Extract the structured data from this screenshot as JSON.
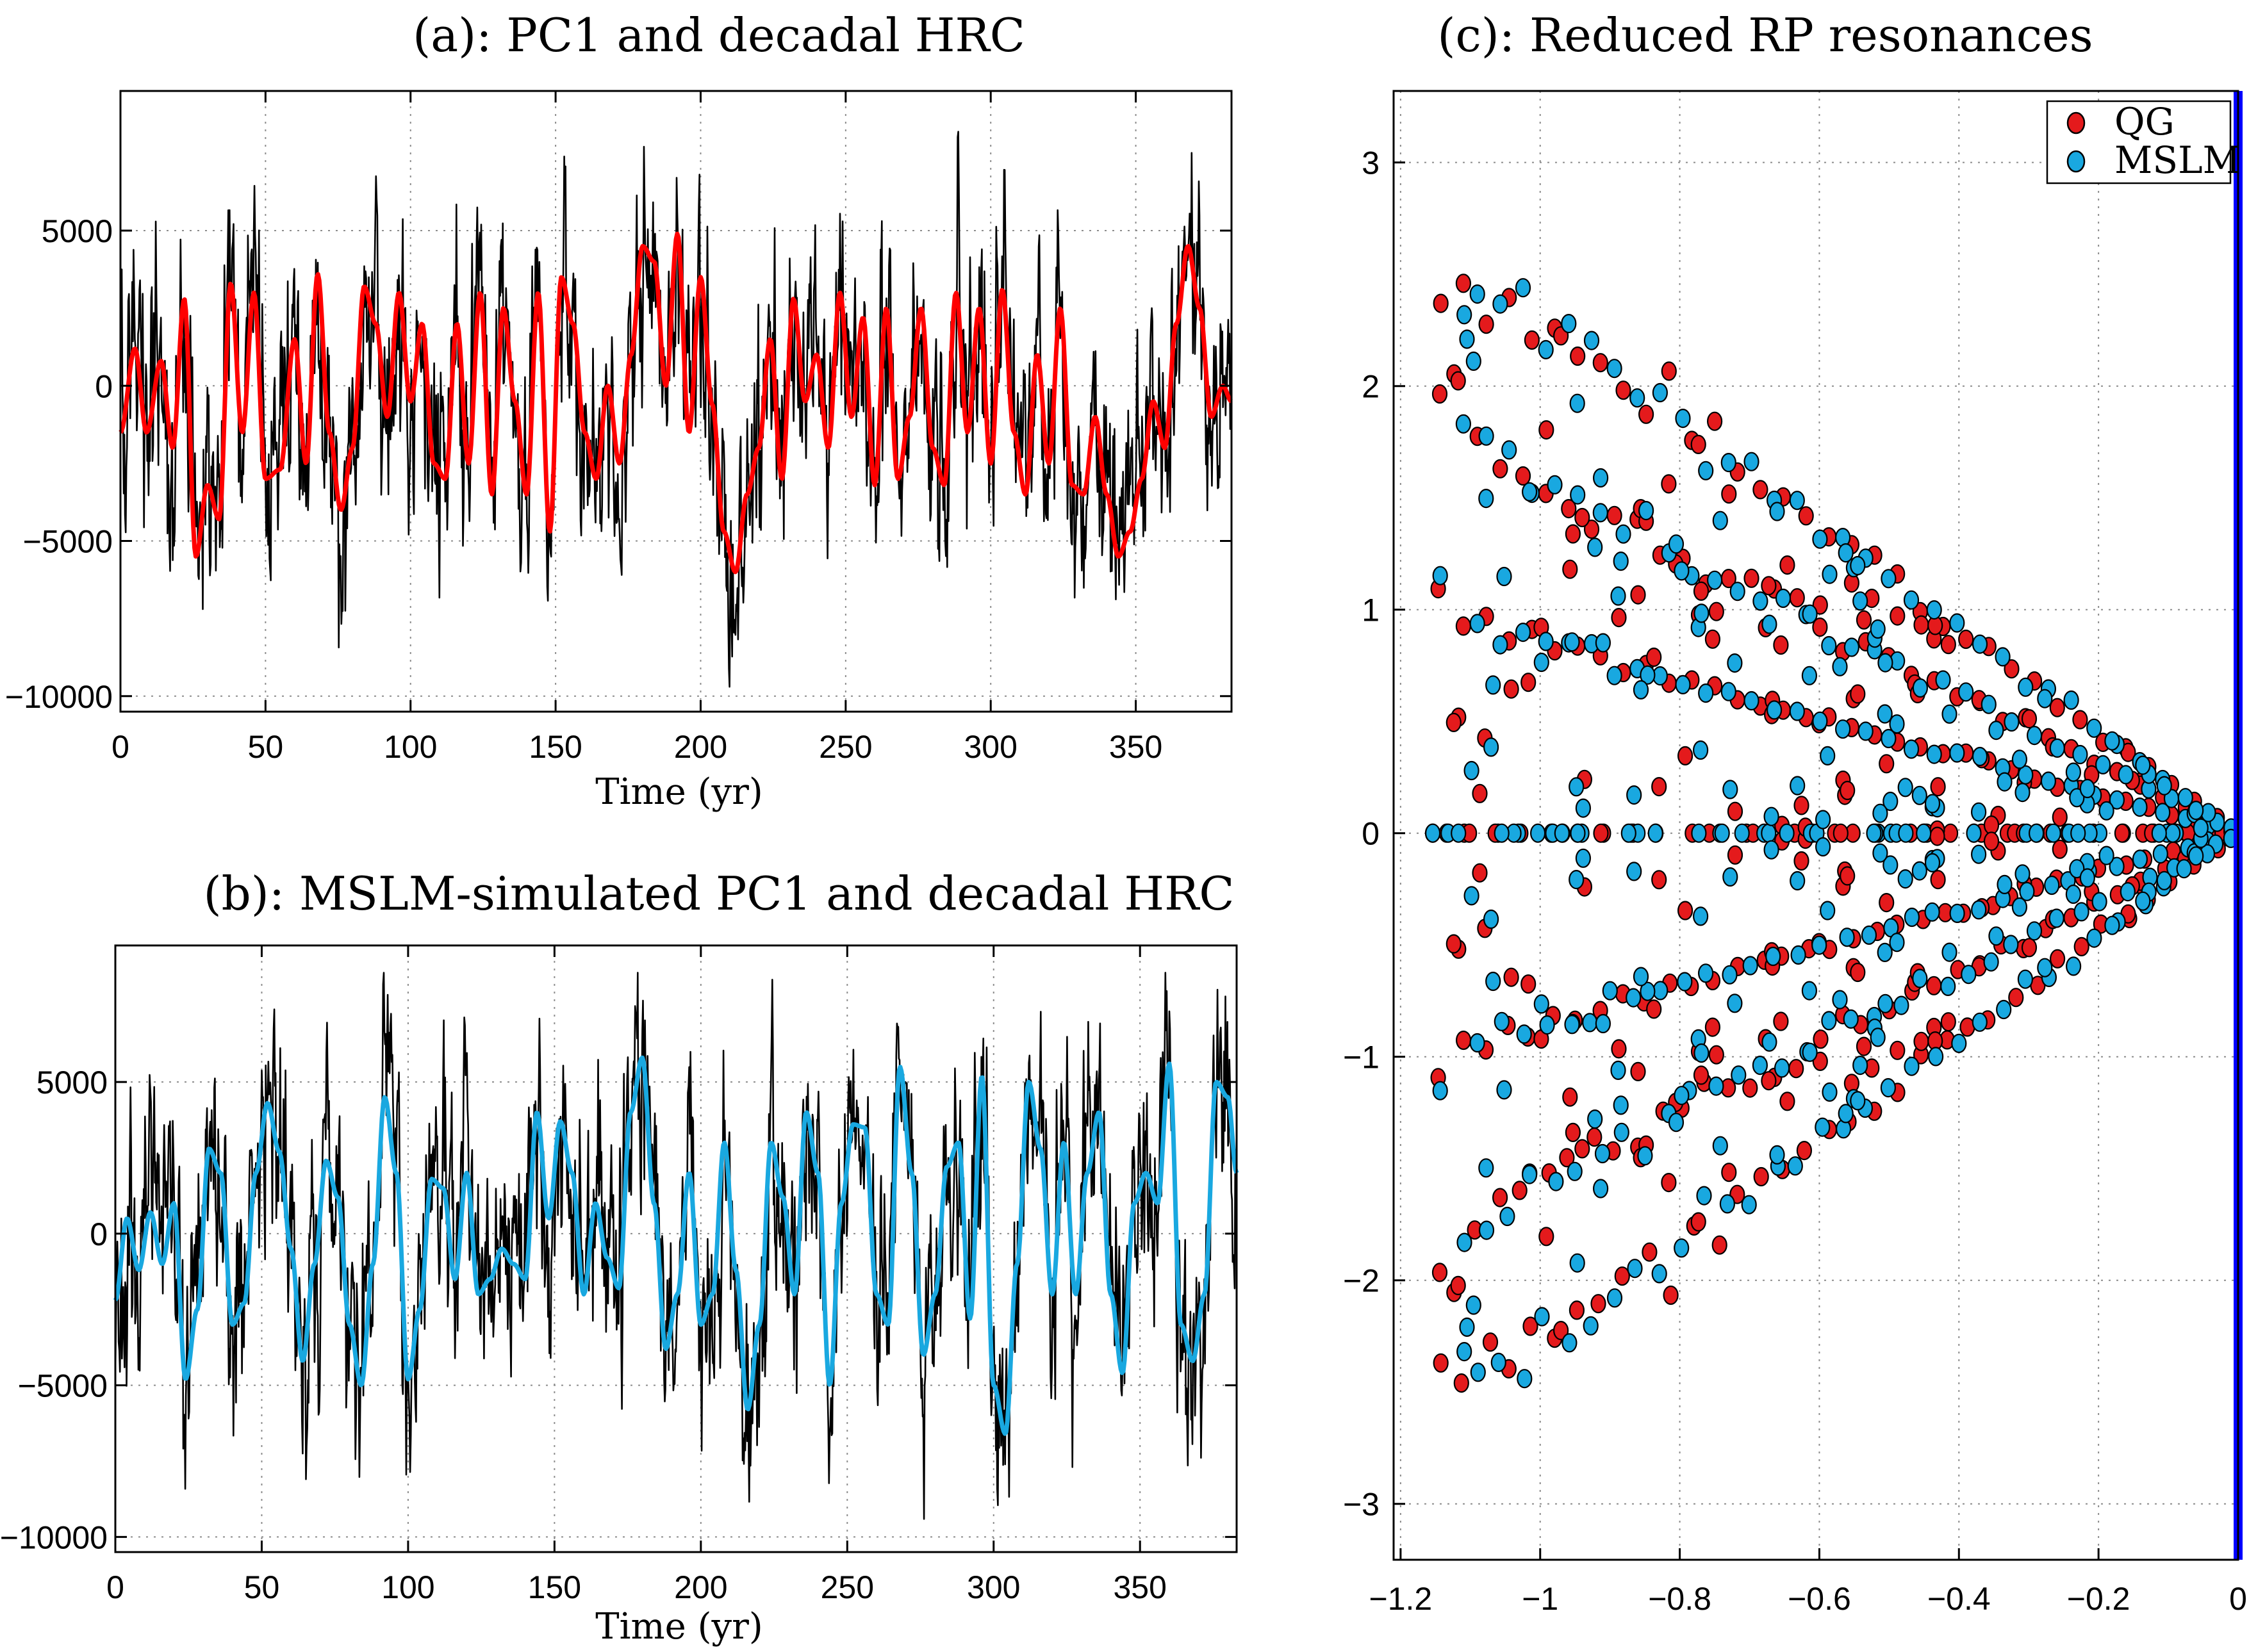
{
  "chart_data": [
    {
      "id": "a",
      "type": "line",
      "title": "(a): PC1 and decadal HRC",
      "xlabel": "Time (yr)",
      "ylabel": "",
      "xlim": [
        0,
        383
      ],
      "ylim": [
        -10500,
        9500
      ],
      "xticks": [
        0,
        50,
        100,
        150,
        200,
        250,
        300,
        350
      ],
      "yticks": [
        5000,
        0,
        -5000,
        -10000
      ],
      "grid": true,
      "series": [
        {
          "name": "PC1",
          "color": "#000000",
          "seed": 7
        },
        {
          "name": "decadal HRC",
          "color": "#ff0000",
          "x": [
            0,
            5,
            9,
            14,
            18,
            22,
            26,
            30,
            34,
            38,
            42,
            46,
            50,
            55,
            60,
            64,
            68,
            72,
            76,
            80,
            84,
            88,
            92,
            96,
            100,
            104,
            108,
            112,
            116,
            120,
            124,
            128,
            132,
            136,
            140,
            144,
            148,
            152,
            156,
            160,
            164,
            168,
            172,
            176,
            180,
            184,
            188,
            192,
            196,
            200,
            204,
            208,
            212,
            216,
            220,
            224,
            228,
            232,
            236,
            240,
            244,
            248,
            252,
            256,
            260,
            264,
            268,
            272,
            276,
            280,
            284,
            288,
            292,
            296,
            300,
            304,
            308,
            312,
            316,
            320,
            324,
            328,
            332,
            336,
            340,
            344,
            348,
            352,
            356,
            360,
            364,
            368,
            372,
            376,
            380,
            383
          ],
          "y": [
            -1500,
            1200,
            -1500,
            800,
            -2000,
            2800,
            -5500,
            -3200,
            -4300,
            3300,
            -1500,
            3000,
            -3000,
            -2700,
            1500,
            -2500,
            3600,
            -1500,
            -4000,
            -2000,
            3200,
            2000,
            -1000,
            3000,
            -500,
            2000,
            -2500,
            -3000,
            2000,
            -2500,
            3000,
            -3500,
            2500,
            -500,
            -3500,
            3000,
            -4700,
            3500,
            2000,
            -1500,
            -3000,
            0,
            -2500,
            1000,
            4500,
            4000,
            0,
            4900,
            -1500,
            3500,
            -600,
            -4700,
            -6000,
            -3500,
            -2000,
            1500,
            -3000,
            2800,
            -500,
            1000,
            -2000,
            3000,
            -1000,
            2200,
            -3200,
            2500,
            -3000,
            -1000,
            2500,
            -2000,
            -3200,
            3000,
            -1500,
            2500,
            -2500,
            3100,
            -1500,
            -3500,
            1000,
            -2500,
            2500,
            -3200,
            -3500,
            -1000,
            -3500,
            -5500,
            -4700,
            -3000,
            -500,
            -2000,
            2000,
            4500,
            2500,
            -1000,
            0,
            -500
          ]
        }
      ]
    },
    {
      "id": "b",
      "type": "line",
      "title": "(b): MSLM-simulated PC1 and decadal HRC",
      "xlabel": "Time (yr)",
      "ylabel": "",
      "xlim": [
        0,
        383
      ],
      "ylim": [
        -10500,
        9500
      ],
      "xticks": [
        0,
        50,
        100,
        150,
        200,
        250,
        300,
        350
      ],
      "yticks": [
        5000,
        0,
        -5000,
        -10000
      ],
      "grid": true,
      "series": [
        {
          "name": "MSLM-simulated PC1",
          "color": "#000000",
          "seed": 23
        },
        {
          "name": "decadal HRC",
          "color": "#19a8e0",
          "x": [
            0,
            4,
            8,
            12,
            16,
            20,
            24,
            28,
            32,
            36,
            40,
            44,
            48,
            52,
            56,
            60,
            64,
            68,
            72,
            76,
            80,
            84,
            88,
            92,
            96,
            100,
            104,
            108,
            112,
            116,
            120,
            124,
            128,
            132,
            136,
            140,
            144,
            148,
            152,
            156,
            160,
            164,
            168,
            172,
            176,
            180,
            184,
            188,
            192,
            196,
            200,
            204,
            208,
            212,
            216,
            220,
            224,
            228,
            232,
            236,
            240,
            244,
            248,
            252,
            256,
            260,
            264,
            268,
            272,
            276,
            280,
            284,
            288,
            292,
            296,
            300,
            304,
            308,
            312,
            316,
            320,
            324,
            328,
            332,
            336,
            340,
            344,
            348,
            352,
            356,
            360,
            364,
            368,
            372,
            376,
            380,
            383
          ],
          "y": [
            -2200,
            500,
            -1200,
            700,
            -1000,
            1000,
            -4800,
            -2500,
            2800,
            2000,
            -3000,
            -2300,
            2000,
            4300,
            2700,
            -500,
            -4200,
            -1000,
            2400,
            1200,
            -3000,
            -5000,
            -1000,
            4500,
            2000,
            -4800,
            -2500,
            1800,
            1500,
            -1500,
            2000,
            -2000,
            -1500,
            -500,
            -1000,
            -1500,
            4000,
            500,
            3700,
            2000,
            -2000,
            1000,
            -800,
            -1800,
            4000,
            5800,
            1000,
            -3800,
            -2000,
            2000,
            -3000,
            -2000,
            3000,
            -1200,
            -5800,
            -3000,
            3000,
            1200,
            -2000,
            4000,
            2000,
            -5000,
            1000,
            3600,
            3500,
            -2000,
            -3000,
            5500,
            2000,
            -4000,
            -2000,
            2200,
            3000,
            -2800,
            5200,
            -5000,
            -6600,
            -1000,
            5000,
            2800,
            -2000,
            3000,
            -2000,
            2000,
            4000,
            -2000,
            -4600,
            1000,
            2000,
            1000,
            5600,
            -3000,
            -4200,
            -2000,
            5000,
            4500,
            2000
          ]
        }
      ]
    },
    {
      "id": "c",
      "type": "scatter",
      "title": "(c): Reduced RP resonances",
      "xlabel": "",
      "ylabel": "",
      "xlim": [
        -1.21,
        0.0
      ],
      "ylim": [
        -3.25,
        3.32
      ],
      "xticks": [
        -1.2,
        -1,
        -0.8,
        -0.6,
        -0.4,
        -0.2,
        0
      ],
      "yticks": [
        3,
        2,
        1,
        0,
        -1,
        -2,
        -3
      ],
      "grid": true,
      "legend_position": "top-right",
      "boundary_line": {
        "x": 0,
        "color": "#0000ff"
      },
      "series": [
        {
          "name": "QG",
          "color": "#e41a1c",
          "seed": 101
        },
        {
          "name": "MSLM",
          "color": "#19a8e0",
          "seed": 202
        }
      ]
    }
  ]
}
